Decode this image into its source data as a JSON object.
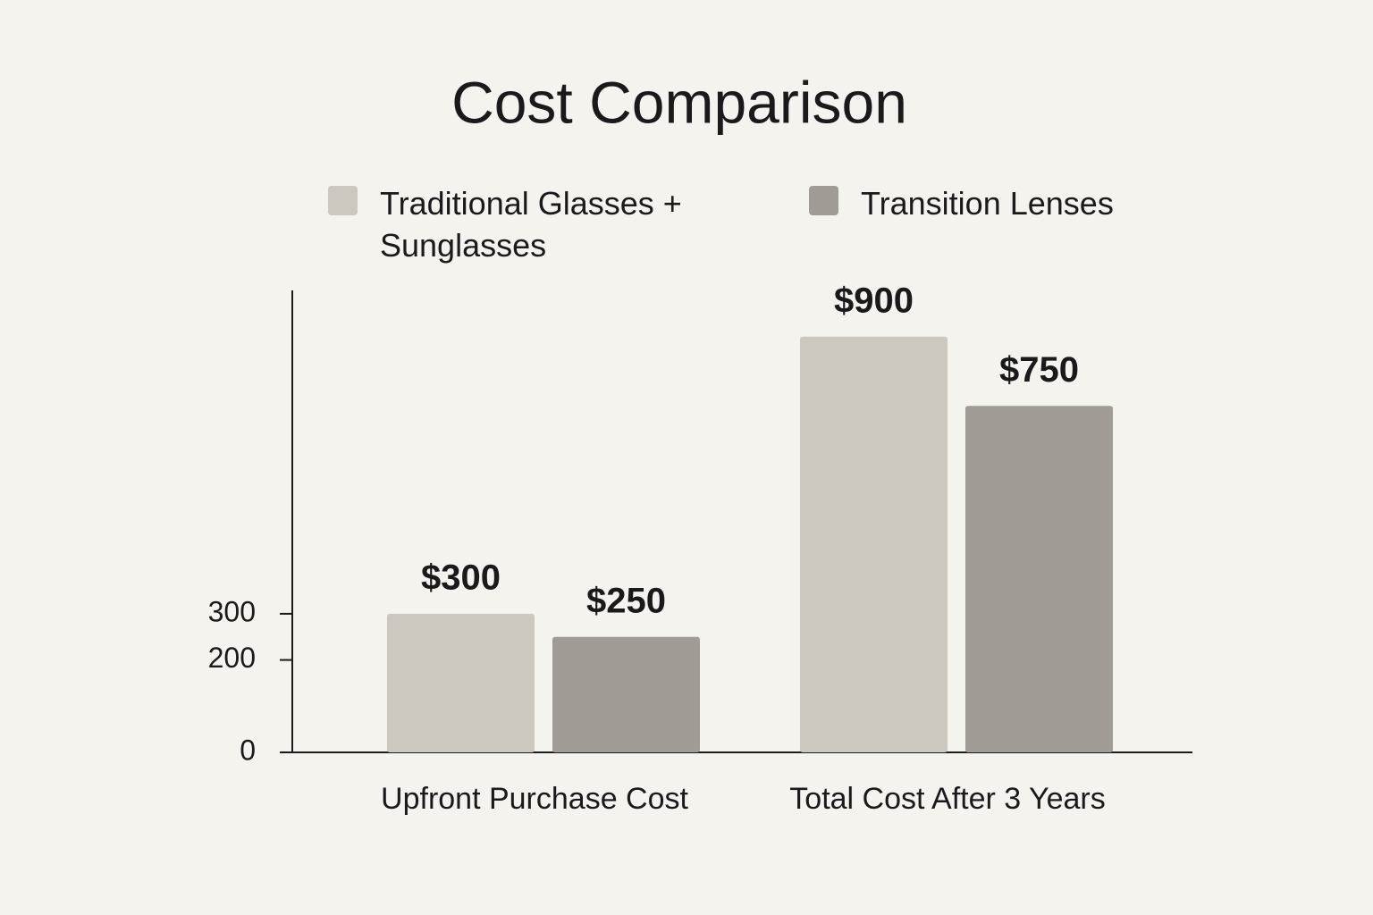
{
  "chart_data": {
    "type": "bar",
    "title": "Cost Comparison",
    "categories": [
      "Upfront Purchase Cost",
      "Total Cost After 3 Years"
    ],
    "series": [
      {
        "name": "Traditional Glasses + Sunglasses",
        "color": "#ccc8c0",
        "values": [
          300,
          900
        ],
        "value_labels": [
          "$300",
          "$900"
        ]
      },
      {
        "name": "Transition Lenses",
        "color": "#a09b94",
        "values": [
          250,
          750
        ],
        "value_labels": [
          "$250",
          "$750"
        ]
      }
    ],
    "ylim": [
      0,
      1000
    ],
    "yticks": [
      0,
      200,
      300
    ]
  }
}
